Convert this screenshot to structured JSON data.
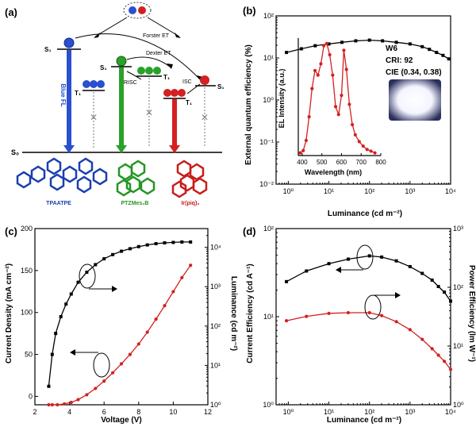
{
  "panel_a": {
    "label": "(a)",
    "states": {
      "s1": "S₁",
      "t1": "T₁",
      "s0": "S₀"
    },
    "transfers": {
      "forster": "Forster ET",
      "dexter": "Dexter ET",
      "risc": "RISC",
      "isc": "ISC"
    },
    "blue_fl": "Blue FL",
    "molecules": [
      {
        "name": "TPAATPE",
        "color": "#2a4fcf"
      },
      {
        "name": "PTZMes₂B",
        "color": "#2aa12a"
      },
      {
        "name": "Ir(piq)₃",
        "color": "#d42020"
      }
    ]
  },
  "chart_data": [
    {
      "panel": "(b)",
      "type": "line",
      "title": "",
      "xlabel": "Luminance (cd m⁻²)",
      "ylabel": "External quantum efficiency (%)",
      "xscale": "log",
      "yscale": "log",
      "xlim": [
        0.5,
        10000
      ],
      "ylim": [
        0.01,
        100
      ],
      "xticks": [
        "10⁰",
        "10¹",
        "10²",
        "10³",
        "10⁴"
      ],
      "yticks": [
        "10⁻²",
        "10⁻¹",
        "10⁰",
        "10¹",
        "10²"
      ],
      "series": [
        {
          "name": "EQE",
          "color": "#000000",
          "x": [
            0.9,
            2.1,
            4.6,
            10,
            21,
            46,
            100,
            210,
            460,
            1000,
            2000,
            3000,
            4500,
            6500,
            9000
          ],
          "y": [
            13.5,
            16.5,
            19.5,
            21.5,
            23.5,
            25.5,
            26.5,
            25.5,
            23.5,
            21.5,
            18.5,
            16,
            13.5,
            11.5,
            9.5
          ]
        }
      ],
      "inset": {
        "type": "line",
        "xlabel": "Wavelength (nm)",
        "ylabel": "EL Intensity (a.u.)",
        "xlim": [
          380,
          800
        ],
        "xticks": [
          "400",
          "500",
          "600",
          "700",
          "800"
        ],
        "ylim": [
          0,
          1
        ],
        "series": [
          {
            "name": "EL",
            "color": "#d42020",
            "x": [
              390,
              405,
              420,
              435,
              450,
              465,
              480,
              495,
              510,
              525,
              540,
              555,
              570,
              585,
              600,
              612,
              625,
              640,
              655,
              670,
              690,
              710,
              730,
              750,
              770
            ],
            "y": [
              0.01,
              0.03,
              0.12,
              0.33,
              0.58,
              0.74,
              0.7,
              0.8,
              0.96,
              0.98,
              0.88,
              0.7,
              0.42,
              0.35,
              0.52,
              0.92,
              0.75,
              0.44,
              0.26,
              0.17,
              0.11,
              0.07,
              0.04,
              0.025,
              0.01
            ]
          }
        ]
      },
      "device": {
        "name": "W6",
        "cri": "CRI: 92",
        "cie": "CIE (0.34, 0.38)"
      }
    },
    {
      "panel": "(c)",
      "type": "line",
      "xlabel": "Voltage (V)",
      "ylabel": "Current Density (mA cm⁻²)",
      "y2label": "Luminance (cd m⁻²)",
      "xlim": [
        2,
        12
      ],
      "ylim": [
        -10,
        200
      ],
      "y2lim": [
        1,
        30000
      ],
      "y2scale": "log",
      "xticks": [
        "2",
        "4",
        "6",
        "8",
        "10",
        "12"
      ],
      "yticks": [
        "0",
        "50",
        "100",
        "150",
        "200"
      ],
      "y2ticks": [
        "10⁰",
        "10¹",
        "10²",
        "10³",
        "10⁴"
      ],
      "series": [
        {
          "name": "Current Density",
          "axis": "left",
          "color": "#000000",
          "x": [
            2.8,
            3.0,
            3.2,
            3.5,
            3.8,
            4.1,
            4.5,
            5.0,
            5.5,
            6.0,
            6.5,
            7.0,
            7.5,
            8.0,
            8.5,
            9.0,
            9.5,
            10.0,
            10.5,
            11.0
          ],
          "y": [
            12,
            50,
            75,
            95,
            110,
            122,
            136,
            148,
            157,
            164,
            169,
            173,
            176,
            178.5,
            180.5,
            182,
            183,
            183.5,
            184,
            184
          ]
        },
        {
          "name": "Luminance",
          "axis": "right",
          "color": "#d42020",
          "x": [
            2.8,
            3.0,
            3.3,
            3.7,
            4.1,
            4.5,
            5.0,
            5.5,
            6.0,
            6.5,
            7.0,
            7.5,
            8.0,
            8.5,
            9.0,
            9.5,
            10.0,
            10.5,
            11.0
          ],
          "y": [
            1.0,
            1.0,
            1.0,
            1.05,
            1.15,
            1.35,
            1.8,
            2.6,
            4.0,
            6.5,
            11,
            19,
            35,
            70,
            150,
            330,
            750,
            1700,
            3500
          ]
        }
      ]
    },
    {
      "panel": "(d)",
      "type": "line",
      "xlabel": "Luminance (cd m⁻²)",
      "ylabel": "Current Efficiency (cd A⁻¹)",
      "y2label": "Power Efficiency (lm W⁻¹)",
      "xscale": "log",
      "yscale": "log",
      "y2scale": "log",
      "xlim": [
        0.5,
        10000
      ],
      "ylim": [
        1,
        100
      ],
      "y2lim": [
        1,
        1000
      ],
      "xticks": [
        "10⁰",
        "10¹",
        "10²",
        "10³",
        "10⁴"
      ],
      "yticks": [
        "10⁰",
        "10¹",
        "10²"
      ],
      "y2ticks": [
        "10⁰",
        "10¹",
        "10²",
        "10³"
      ],
      "series": [
        {
          "name": "Current Efficiency",
          "axis": "left",
          "color": "#000000",
          "x": [
            0.9,
            2.8,
            10,
            30,
            100,
            200,
            460,
            1000,
            2000,
            3500,
            5000,
            7000,
            10000
          ],
          "y": [
            25,
            33,
            40,
            45,
            49,
            47.5,
            43,
            37,
            31,
            26,
            22,
            19,
            15
          ]
        },
        {
          "name": "Power Efficiency",
          "axis": "right",
          "color": "#d42020",
          "x": [
            0.9,
            2.8,
            10,
            30,
            100,
            200,
            460,
            1000,
            2000,
            3500,
            5000,
            7000,
            10000
          ],
          "y": [
            27,
            32,
            36,
            37,
            37,
            33,
            26,
            19,
            13,
            9,
            7,
            5.5,
            4
          ]
        }
      ]
    }
  ]
}
